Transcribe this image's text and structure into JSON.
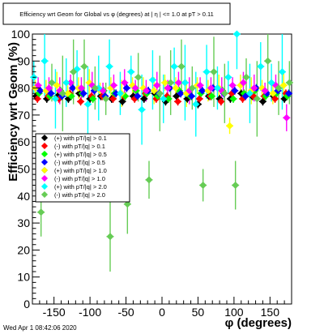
{
  "title": "Efficiency wrt Geom for Global vs φ (degrees) at | η | <= 1.0 at pT > 0.11",
  "footer": "Wed Apr  1 08:42:06 2020",
  "colors": {
    "background": "#ffffff",
    "frame": "#000000"
  },
  "chart_data": {
    "type": "scatter",
    "title": "Efficiency wrt Geom for Global vs φ (degrees) at | η | <= 1.0 at pT > 0.11",
    "xlabel": "φ (degrees)",
    "ylabel": "Efficiency wrt Geom (%)",
    "xlim": [
      -180,
      180
    ],
    "ylim": [
      0,
      100
    ],
    "x_ticks": [
      -150,
      -100,
      -50,
      0,
      50,
      100,
      150
    ],
    "y_ticks": [
      0,
      10,
      20,
      30,
      40,
      50,
      60,
      70,
      80,
      90,
      100
    ],
    "grid": false,
    "legend_position": "left-middle",
    "series": [
      {
        "name": "(+) with pT/|q| > 0.1",
        "color": "#000000",
        "marker": "diamond",
        "x": [
          -175,
          -160,
          -145,
          -130,
          -115,
          -100,
          -85,
          -70,
          -55,
          -40,
          -25,
          -10,
          5,
          20,
          35,
          50,
          65,
          80,
          95,
          110,
          125,
          140,
          155,
          170
        ],
        "y": [
          77,
          76,
          77,
          76,
          78,
          76,
          77,
          76,
          75,
          77,
          76,
          78,
          75,
          77,
          76,
          74,
          77,
          76,
          76,
          78,
          77,
          75,
          77,
          76
        ]
      },
      {
        "name": "(-) with pT/|q| > 0.1",
        "color": "#ff0000",
        "marker": "diamond",
        "x": [
          -173,
          -158,
          -143,
          -128,
          -113,
          -98,
          -83,
          -68,
          -53,
          -38,
          -23,
          -8,
          7,
          22,
          37,
          52,
          67,
          82,
          97,
          112,
          127,
          142,
          157,
          172
        ],
        "y": [
          76,
          77,
          76,
          78,
          75,
          77,
          77,
          76,
          77,
          76,
          78,
          76,
          77,
          75,
          78,
          76,
          77,
          75,
          78,
          76,
          77,
          77,
          76,
          78
        ]
      },
      {
        "name": "(+) with pT/|q| > 0.5",
        "color": "#00ff00",
        "marker": "diamond",
        "x": [
          -171,
          -156,
          -141,
          -126,
          -111,
          -96,
          -81,
          -66,
          -51,
          -36,
          -21,
          -6,
          9,
          24,
          39,
          54,
          69,
          84,
          99,
          114,
          129,
          144,
          159,
          174
        ],
        "y": [
          78,
          77,
          79,
          77,
          78,
          76,
          79,
          78,
          77,
          79,
          78,
          77,
          76,
          79,
          77,
          78,
          77,
          79,
          76,
          78,
          79,
          77,
          78,
          77
        ]
      },
      {
        "name": "(-) with pT/|q| > 0.5",
        "color": "#0000ff",
        "marker": "diamond",
        "x": [
          -169,
          -154,
          -139,
          -124,
          -109,
          -94,
          -79,
          -64,
          -49,
          -34,
          -19,
          -4,
          11,
          26,
          41,
          56,
          71,
          86,
          101,
          116,
          131,
          146,
          161,
          176
        ],
        "y": [
          79,
          78,
          77,
          80,
          78,
          79,
          77,
          78,
          80,
          77,
          79,
          78,
          80,
          78,
          77,
          79,
          80,
          78,
          79,
          77,
          80,
          78,
          79,
          78
        ]
      },
      {
        "name": "(+) with pT/|q| > 1.0",
        "color": "#ffff00",
        "marker": "diamond",
        "x": [
          -176,
          -161,
          -146,
          -131,
          -116,
          -101,
          -86,
          -71,
          -56,
          -41,
          -26,
          -11,
          4,
          19,
          34,
          49,
          64,
          79,
          94,
          109,
          124,
          139,
          154,
          169
        ],
        "y": [
          80,
          79,
          81,
          78,
          80,
          82,
          79,
          80,
          78,
          81,
          80,
          79,
          82,
          80,
          78,
          81,
          79,
          80,
          66,
          81,
          79,
          80,
          78,
          81
        ]
      },
      {
        "name": "(-) with pT/|q| > 1.0",
        "color": "#ff00ff",
        "marker": "diamond",
        "x": [
          -172,
          -157,
          -142,
          -127,
          -112,
          -97,
          -82,
          -67,
          -52,
          -37,
          -22,
          -7,
          8,
          23,
          38,
          53,
          68,
          83,
          98,
          113,
          128,
          143,
          158,
          173
        ],
        "y": [
          81,
          80,
          79,
          82,
          80,
          81,
          79,
          81,
          82,
          80,
          79,
          81,
          80,
          82,
          79,
          81,
          80,
          79,
          81,
          82,
          80,
          79,
          81,
          69
        ]
      },
      {
        "name": "(+) with pT/|q| > 2.0",
        "color": "#00ffff",
        "marker": "diamond",
        "x": [
          -178,
          -163,
          -148,
          -133,
          -118,
          -103,
          -88,
          -73,
          -58,
          -43,
          -28,
          -13,
          2,
          17,
          32,
          47,
          62,
          77,
          92,
          104,
          122,
          137,
          152,
          167
        ],
        "y": [
          84,
          90,
          76,
          82,
          87,
          74,
          80,
          88,
          78,
          86,
          72,
          83,
          76,
          88,
          82,
          74,
          86,
          80,
          84,
          100,
          78,
          88,
          82,
          86
        ]
      },
      {
        "name": "(-) with pT/|q| > 2.0",
        "color": "#66cc55",
        "marker": "diamond",
        "x": [
          -168,
          -153,
          -138,
          -123,
          -108,
          -93,
          -78,
          -72,
          -48,
          -33,
          -18,
          -3,
          12,
          27,
          42,
          57,
          72,
          87,
          102,
          117,
          132,
          147,
          162,
          177
        ],
        "y": [
          34,
          82,
          78,
          86,
          88,
          80,
          76,
          25,
          37,
          84,
          46,
          78,
          82,
          88,
          80,
          44,
          86,
          78,
          44,
          84,
          76,
          90,
          80,
          82
        ]
      }
    ]
  }
}
